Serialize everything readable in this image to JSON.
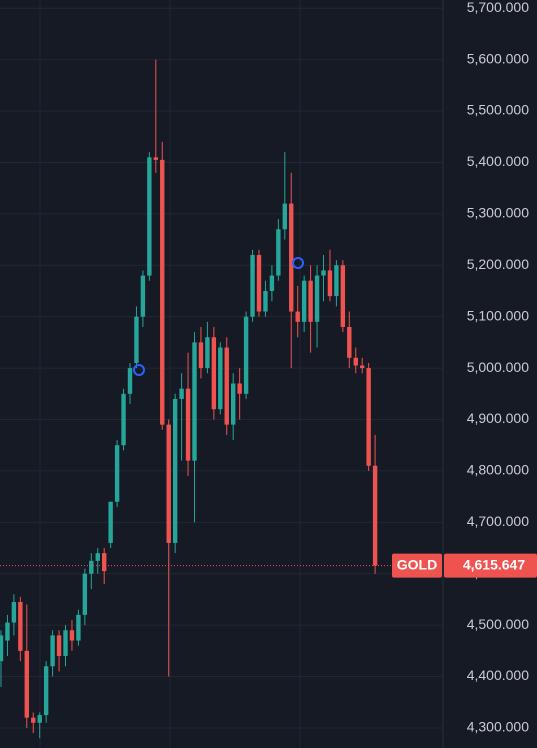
{
  "chart_data": {
    "type": "candlestick",
    "symbol": "GOLD",
    "up_color": "#26a69a",
    "down_color": "#ef5350",
    "open": [
      4430,
      4470,
      4505,
      4545,
      4450,
      4320,
      4310,
      4325,
      4420,
      4480,
      4440,
      4490,
      4470,
      4520,
      4600,
      4625,
      4640,
      4660,
      4740,
      4850,
      4950,
      5010,
      5100,
      5180,
      5410,
      5405,
      4890,
      4660,
      4940,
      4960,
      4820,
      5050,
      5000,
      5060,
      4920,
      5040,
      4890,
      4970,
      4950,
      5100,
      5220,
      5110,
      5150,
      5180,
      5270,
      5320,
      5110,
      5090,
      5170,
      5090,
      5180,
      5190,
      5140,
      5200,
      5080,
      5020,
      5005,
      5000,
      4810
    ],
    "high": [
      4490,
      4520,
      4560,
      4555,
      4540,
      4330,
      4330,
      4430,
      4490,
      4490,
      4500,
      4510,
      4530,
      4610,
      4640,
      4650,
      4650,
      4740,
      4860,
      4960,
      5010,
      5120,
      5190,
      5420,
      5600,
      5440,
      4900,
      4950,
      4990,
      5030,
      5070,
      5080,
      5090,
      5080,
      5050,
      5060,
      4990,
      5000,
      5110,
      5230,
      5230,
      5170,
      5200,
      5290,
      5420,
      5380,
      5160,
      5180,
      5200,
      5200,
      5220,
      5230,
      5210,
      5210,
      5110,
      5040,
      5020,
      5010,
      4870
    ],
    "low": [
      4380,
      4440,
      4480,
      4430,
      4300,
      4290,
      4280,
      4310,
      4400,
      4410,
      4420,
      4450,
      4460,
      4500,
      4570,
      4600,
      4580,
      4650,
      4730,
      4840,
      4930,
      5000,
      5080,
      5170,
      5380,
      4880,
      4400,
      4640,
      4820,
      4790,
      4700,
      4980,
      4990,
      4900,
      4910,
      4870,
      4860,
      4900,
      4940,
      5090,
      5100,
      5100,
      5130,
      5170,
      5250,
      5000,
      5060,
      5070,
      5030,
      5040,
      5130,
      5130,
      5120,
      5070,
      5000,
      4990,
      4990,
      4800,
      4600
    ],
    "close": [
      4480,
      4505,
      4545,
      4450,
      4320,
      4310,
      4325,
      4420,
      4480,
      4440,
      4490,
      4470,
      4520,
      4600,
      4625,
      4640,
      4605,
      4740,
      4850,
      4950,
      5000,
      5100,
      5180,
      5410,
      5405,
      4890,
      4660,
      4940,
      4960,
      4820,
      5050,
      5000,
      5060,
      4920,
      5040,
      4890,
      4970,
      4950,
      5100,
      5220,
      5110,
      5150,
      5180,
      5270,
      5320,
      5110,
      5090,
      5170,
      5090,
      5180,
      5190,
      5140,
      5200,
      5080,
      5020,
      5005,
      5000,
      4810,
      4615.647
    ],
    "last_price": {
      "value": 4615.647,
      "label": "4,615.647"
    },
    "ylim": [
      4261,
      5716
    ],
    "yticks": [
      {
        "value": 4300,
        "label": "4,300.000"
      },
      {
        "value": 4400,
        "label": "4,400.000"
      },
      {
        "value": 4500,
        "label": "4,500.000"
      },
      {
        "value": 4600,
        "label": "4,600.000"
      },
      {
        "value": 4700,
        "label": "4,700.000"
      },
      {
        "value": 4800,
        "label": "4,800.000"
      },
      {
        "value": 4900,
        "label": "4,900.000"
      },
      {
        "value": 5000,
        "label": "5,000.000"
      },
      {
        "value": 5100,
        "label": "5,100.000"
      },
      {
        "value": 5200,
        "label": "5,200.000"
      },
      {
        "value": 5300,
        "label": "5,300.000"
      },
      {
        "value": 5400,
        "label": "5,400.000"
      },
      {
        "value": 5500,
        "label": "5,500.000"
      },
      {
        "value": 5600,
        "label": "5,600.000"
      },
      {
        "value": 5700,
        "label": "5,700.000"
      }
    ],
    "grid": true
  }
}
